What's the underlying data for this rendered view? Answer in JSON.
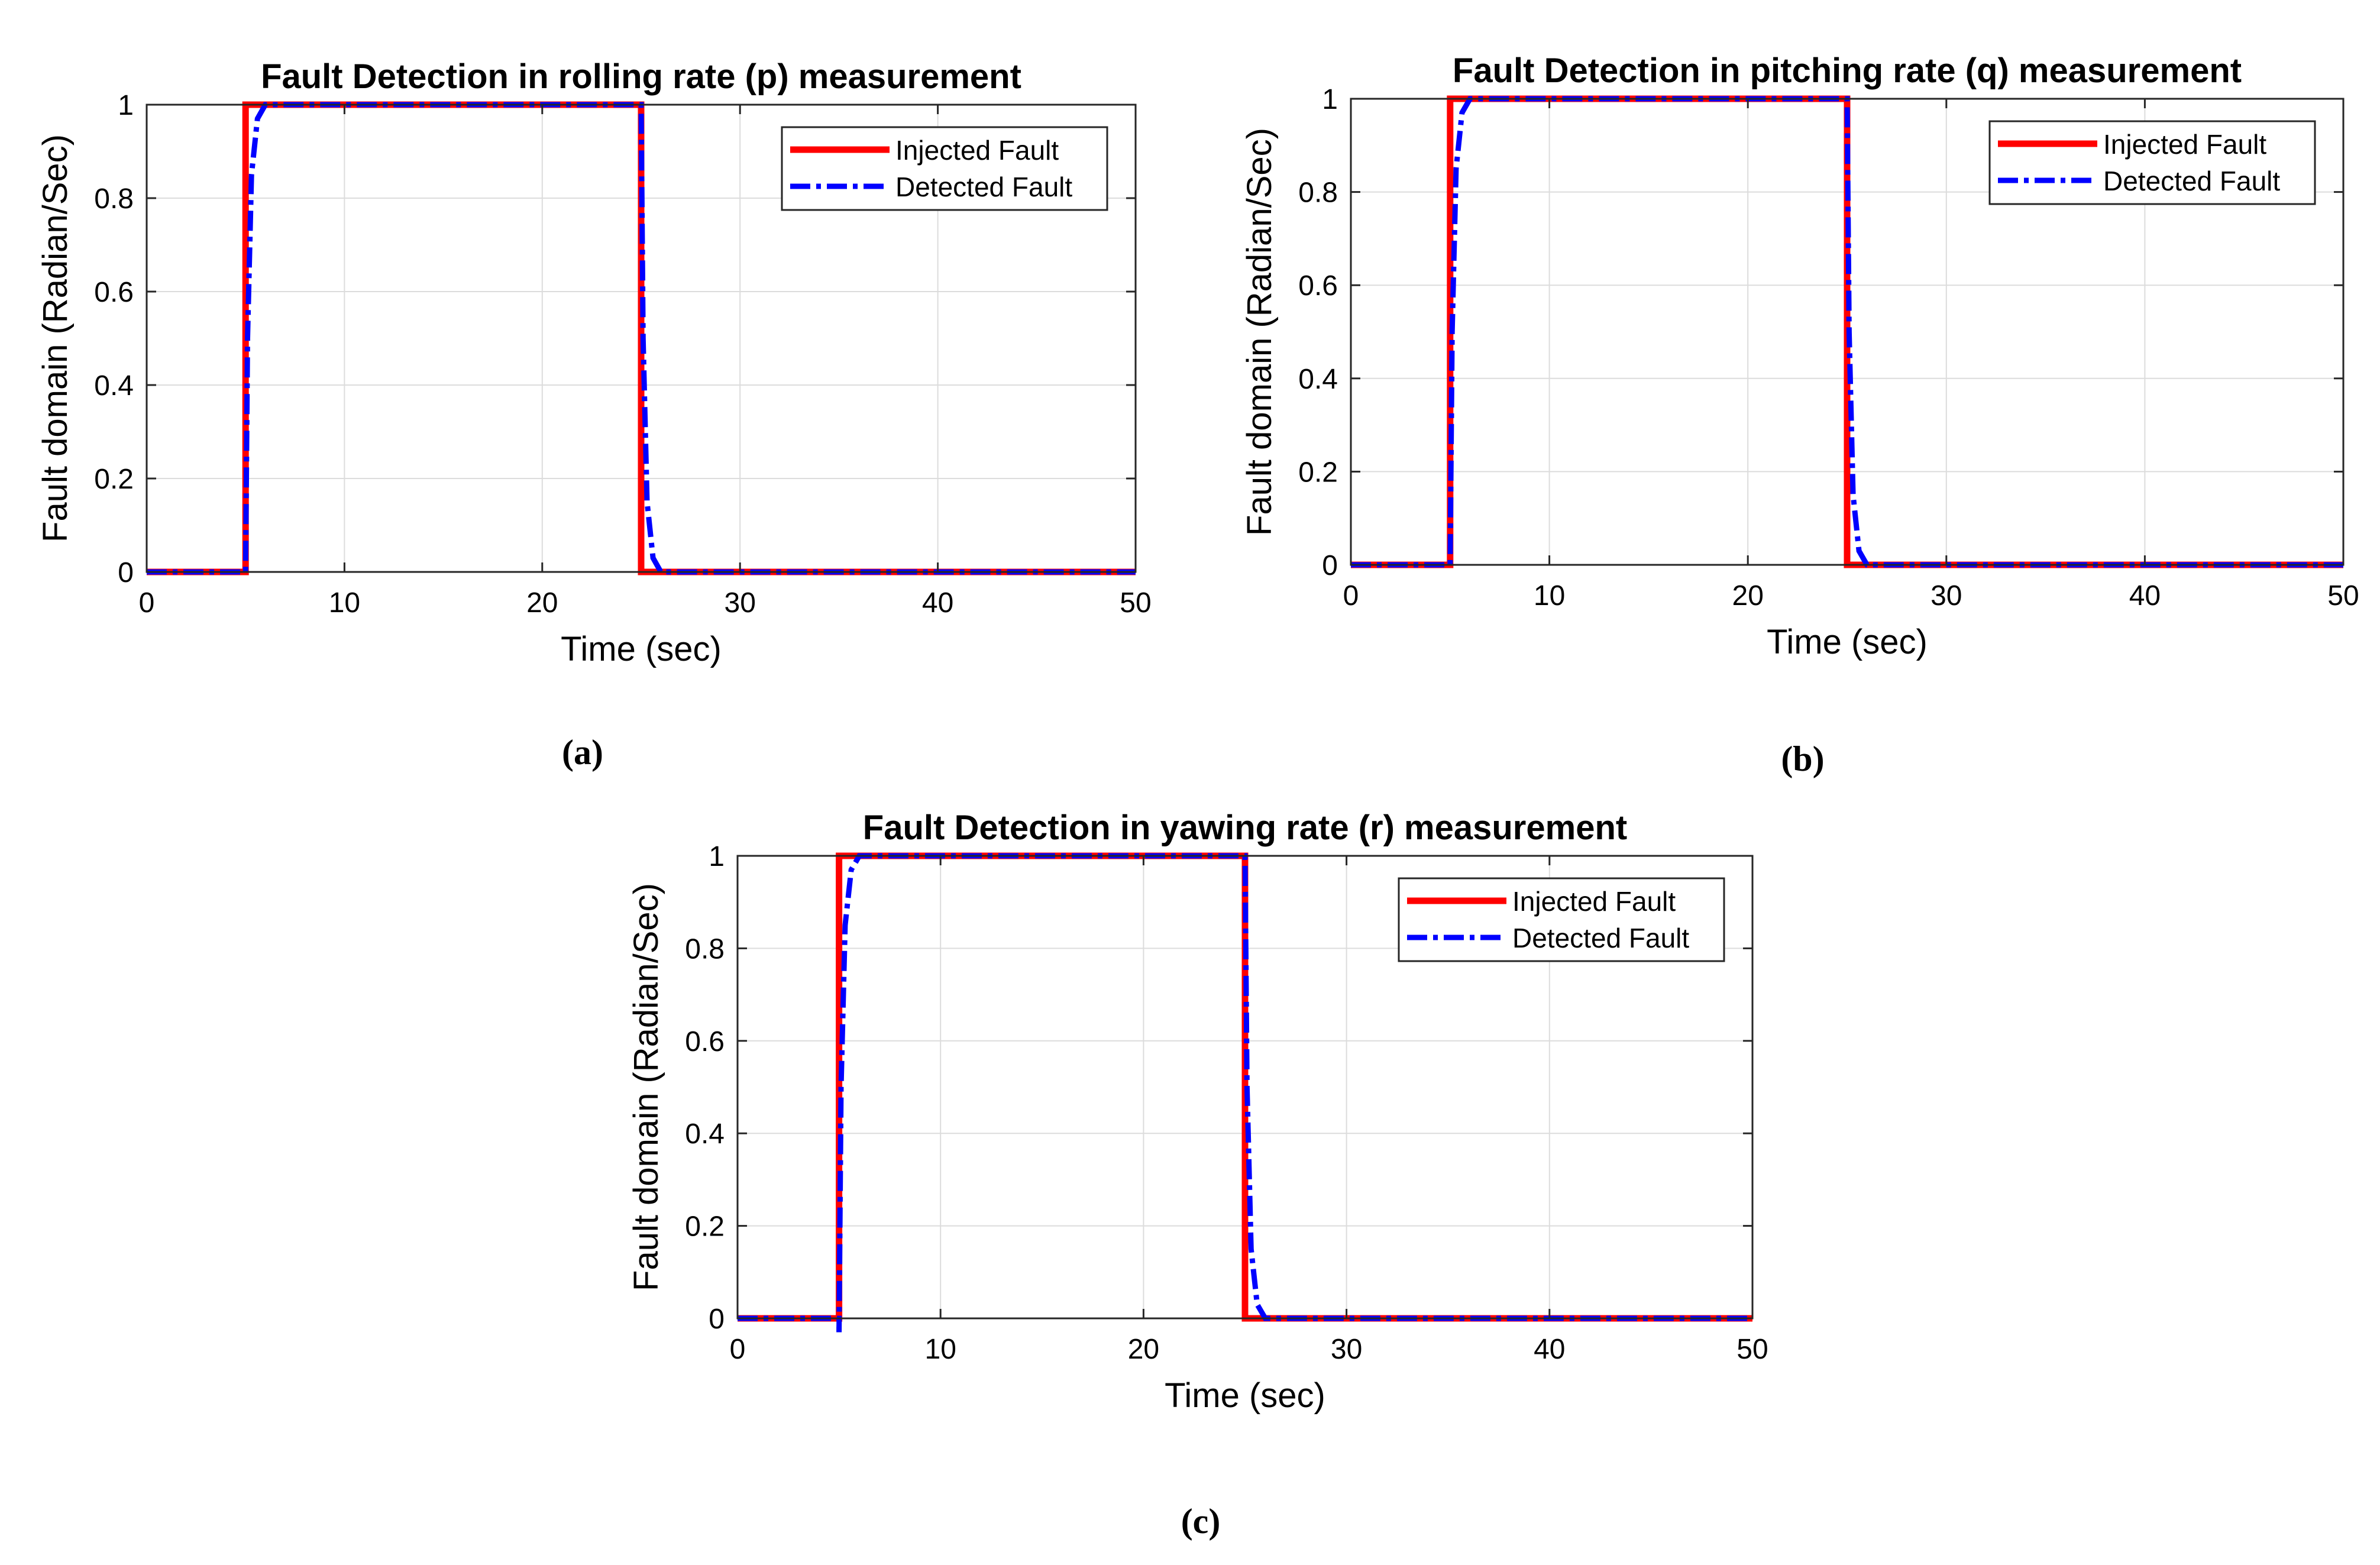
{
  "figure": {
    "captions": [
      "(a)",
      "(b)",
      "(c)"
    ]
  },
  "colors": {
    "injected": "#ff0000",
    "detected": "#0000ff",
    "grid": "#dcdcdc",
    "axis": "#262626"
  },
  "chart_data": [
    {
      "type": "line",
      "title": "Fault Detection in rolling rate (p) measurement",
      "xlabel": "Time (sec)",
      "ylabel": "Fault domain (Radian/Sec)",
      "xlim": [
        0,
        50
      ],
      "ylim": [
        0,
        1
      ],
      "xticks": [
        0,
        10,
        20,
        30,
        40,
        50
      ],
      "xtick_labels": [
        "0",
        "10",
        "20",
        "30",
        "40",
        "50"
      ],
      "yticks": [
        0,
        0.2,
        0.4,
        0.6,
        0.8,
        1
      ],
      "ytick_labels": [
        "0",
        "0.2",
        "0.4",
        "0.6",
        "0.8",
        "1"
      ],
      "grid": true,
      "legend_position": "top-right",
      "series": [
        {
          "name": "Injected Fault",
          "style": "solid",
          "x": [
            0,
            5,
            5,
            25,
            25,
            50
          ],
          "y": [
            0,
            0,
            1,
            1,
            0,
            0
          ]
        },
        {
          "name": "Detected Fault",
          "style": "dash-dot",
          "x": [
            0,
            5,
            5.1,
            5.3,
            5.6,
            6,
            25,
            25.1,
            25.3,
            25.6,
            26,
            50
          ],
          "y": [
            0,
            0,
            0.5,
            0.85,
            0.97,
            1,
            1,
            0.5,
            0.15,
            0.03,
            0,
            0
          ]
        }
      ]
    },
    {
      "type": "line",
      "title": "Fault Detection in pitching rate (q) measurement",
      "xlabel": "Time (sec)",
      "ylabel": "Fault domain (Radian/Sec)",
      "xlim": [
        0,
        50
      ],
      "ylim": [
        0,
        1
      ],
      "xticks": [
        0,
        10,
        20,
        30,
        40,
        50
      ],
      "xtick_labels": [
        "0",
        "10",
        "20",
        "30",
        "40",
        "50"
      ],
      "yticks": [
        0,
        0.2,
        0.4,
        0.6,
        0.8,
        1
      ],
      "ytick_labels": [
        "0",
        "0.2",
        "0.4",
        "0.6",
        "0.8",
        "1"
      ],
      "grid": true,
      "legend_position": "top-right",
      "series": [
        {
          "name": "Injected Fault",
          "style": "solid",
          "x": [
            0,
            5,
            5,
            25,
            25,
            50
          ],
          "y": [
            0,
            0,
            1,
            1,
            0,
            0
          ]
        },
        {
          "name": "Detected Fault",
          "style": "dash-dot",
          "x": [
            0,
            5,
            5.1,
            5.3,
            5.6,
            6,
            25,
            25.1,
            25.3,
            25.6,
            26,
            50
          ],
          "y": [
            0,
            0,
            0.5,
            0.85,
            0.97,
            1,
            1,
            0.5,
            0.15,
            0.03,
            0,
            0
          ]
        }
      ]
    },
    {
      "type": "line",
      "title": "Fault Detection in yawing rate (r) measurement",
      "xlabel": "Time (sec)",
      "ylabel": "Fault domain (Radian/Sec)",
      "xlim": [
        0,
        50
      ],
      "ylim": [
        0,
        1
      ],
      "xticks": [
        0,
        10,
        20,
        30,
        40,
        50
      ],
      "xtick_labels": [
        "0",
        "10",
        "20",
        "30",
        "40",
        "50"
      ],
      "yticks": [
        0,
        0.2,
        0.4,
        0.6,
        0.8,
        1
      ],
      "ytick_labels": [
        "0",
        "0.2",
        "0.4",
        "0.6",
        "0.8",
        "1"
      ],
      "grid": true,
      "legend_position": "top-right",
      "series": [
        {
          "name": "Injected Fault",
          "style": "solid",
          "x": [
            0,
            5,
            5,
            25,
            25,
            50
          ],
          "y": [
            0,
            0,
            1,
            1,
            0,
            0
          ]
        },
        {
          "name": "Detected Fault",
          "style": "dash-dot",
          "x": [
            0,
            5,
            5,
            5.1,
            5.3,
            5.6,
            6,
            25,
            25.1,
            25.3,
            25.6,
            26,
            50
          ],
          "y": [
            0,
            0,
            -0.03,
            0.5,
            0.85,
            0.97,
            1,
            1,
            0.5,
            0.15,
            0.03,
            0,
            0
          ]
        }
      ]
    }
  ]
}
